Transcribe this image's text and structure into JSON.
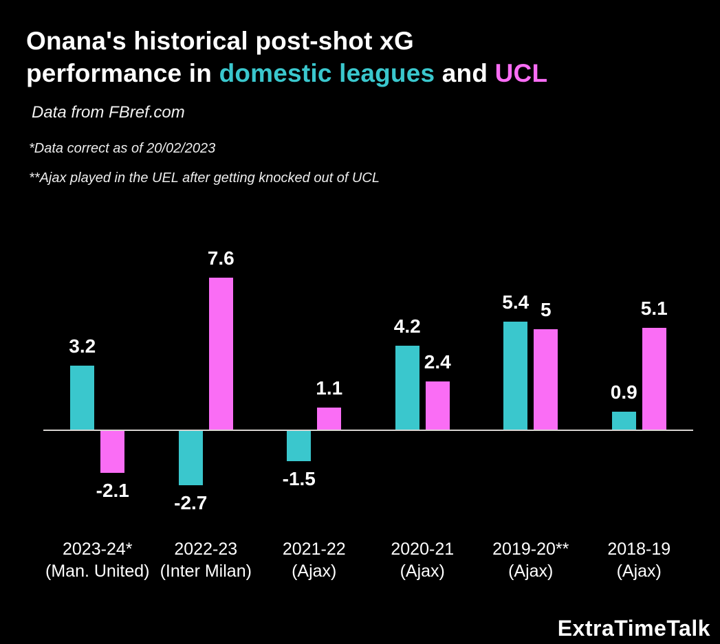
{
  "header": {
    "title_lines": [
      [
        {
          "text": "Onana's historical post-shot xG",
          "color": "#FFFFFF"
        }
      ],
      [
        {
          "text": "performance in ",
          "color": "#FFFFFF"
        },
        {
          "text": "domestic leagues",
          "color": "#3AC7CD"
        },
        {
          "text": " and ",
          "color": "#FFFFFF"
        },
        {
          "text": "UCL",
          "color": "#FA6DF5"
        }
      ]
    ],
    "subtitle": "Data from FBref.com",
    "notes": [
      "*Data correct as of 20/02/2023",
      "**Ajax played in the UEL after getting knocked out of UCL"
    ]
  },
  "chart_data": {
    "type": "bar",
    "title": "Onana's historical post-shot xG performance in domestic leagues and UCL",
    "xlabel": "",
    "ylabel": "",
    "categories": [
      {
        "season": "2023-24*",
        "team": "(Man. United)"
      },
      {
        "season": "2022-23",
        "team": "(Inter Milan)"
      },
      {
        "season": "2021-22",
        "team": "(Ajax)"
      },
      {
        "season": "2020-21",
        "team": "(Ajax)"
      },
      {
        "season": "2019-20**",
        "team": "(Ajax)"
      },
      {
        "season": "2018-19",
        "team": "(Ajax)"
      }
    ],
    "series": [
      {
        "name": "Domestic leagues",
        "color": "#3AC7CD",
        "values": [
          3.2,
          -2.7,
          -1.5,
          4.2,
          5.4,
          0.9
        ],
        "labels": [
          "3.2",
          "-2.7",
          "-1.5",
          "4.2",
          "5.4",
          "0.9"
        ]
      },
      {
        "name": "UCL",
        "color": "#FA6DF5",
        "values": [
          -2.1,
          7.6,
          1.1,
          2.4,
          5,
          5.1
        ],
        "labels": [
          "-2.1",
          "7.6",
          "1.1",
          "2.4",
          "5",
          "5.1"
        ]
      }
    ],
    "baseline": 0,
    "ylim": [
      -3.5,
      8.5
    ],
    "grid": false,
    "legend": "colored-words-in-title",
    "value_labels_shown": true,
    "axis_line_color": "#D9D5D2"
  },
  "footer": {
    "branding": "ExtraTimeTalk"
  },
  "colors": {
    "background": "#000000",
    "text": "#FFFFFF",
    "domestic": "#3AC7CD",
    "ucl": "#FA6DF5",
    "axis_line": "#D9D5D2"
  }
}
